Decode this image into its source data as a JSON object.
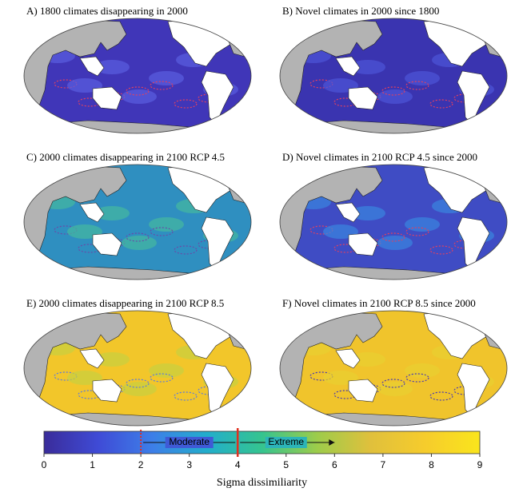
{
  "panels": [
    {
      "title": "A) 1800 climates disappearing in 2000"
    },
    {
      "title": "B) Novel climates in 2000 since 1800"
    },
    {
      "title": "C) 2000 climates disappearing in 2100 RCP 4.5"
    },
    {
      "title": "D) Novel climates in 2100 RCP 4.5 since 2000"
    },
    {
      "title": "E) 2000 climates disappearing in 2100 RCP 8.5"
    },
    {
      "title": "F) Novel climates in 2100 RCP 8.5 since 2000"
    }
  ],
  "colorbar": {
    "label": "Sigma dissimiliarity",
    "lim": [
      0,
      9
    ],
    "ticks": [
      0,
      1,
      2,
      3,
      4,
      5,
      6,
      7,
      8,
      9
    ],
    "thresholds": [
      2,
      4
    ],
    "annotations": [
      "Moderate",
      "Extreme"
    ],
    "colors": [
      "#3a2c9a",
      "#3f4bd6",
      "#3d7fe8",
      "#22aecb",
      "#35c48f",
      "#9ccc4b",
      "#e0c03c",
      "#f6cc2c",
      "#fae51c"
    ]
  }
}
